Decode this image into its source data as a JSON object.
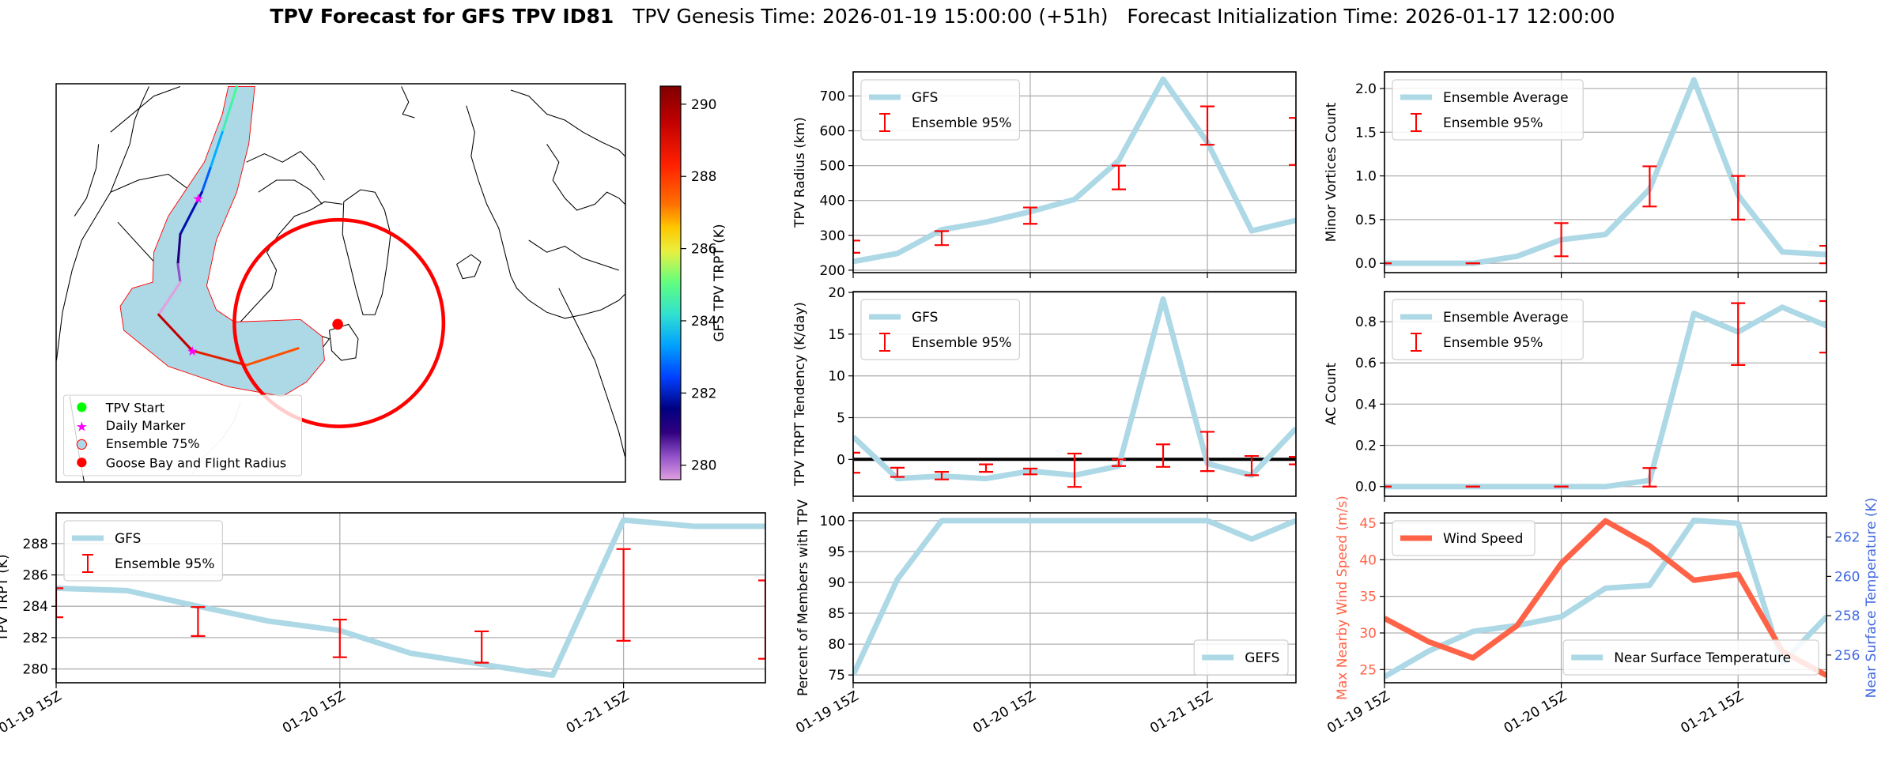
{
  "title": {
    "main": "TPV Forecast for GFS TPV ID81",
    "genesis": "TPV Genesis Time: 2026-01-19 15:00:00 (+51h)",
    "init": "Forecast Initialization Time: 2026-01-17 12:00:00"
  },
  "map": {
    "legend": [
      "TPV Start",
      "Daily Marker",
      "Ensemble 75%",
      "Goose Bay and Flight Radius"
    ],
    "colorbar": {
      "label": "GFS TPV TRPT (K)",
      "ticks": [
        "280",
        "282",
        "284",
        "286",
        "288",
        "290"
      ],
      "tick_values": [
        280,
        282,
        284,
        286,
        288,
        290
      ],
      "range": [
        279.6,
        290.5
      ]
    },
    "colors": {
      "ensemble_fill": "#add8e6",
      "ensemble_edge": "#ff0000",
      "start": "#00ff00",
      "daily": "#ff00ff",
      "goose_bay": "#ff0000"
    }
  },
  "chart_data": [
    {
      "type": "line",
      "id": "trpt",
      "ylabel": "TPV TRPT (K)",
      "ylim": [
        279.12,
        289.96
      ],
      "yticks": [
        280,
        282,
        284,
        286,
        288
      ],
      "ytick_labels": [
        "280",
        "282",
        "284",
        "286",
        "288"
      ],
      "xticks": {
        "index": [
          0,
          4,
          8
        ],
        "labels": [
          "01-19 15Z",
          "01-20 15Z",
          "01-21 15Z"
        ]
      },
      "show_xlabels": true,
      "series": [
        {
          "name": "GFS",
          "color": "#add8e6",
          "values": [
            285.15,
            285.0,
            284.0,
            283.05,
            282.45,
            281.0,
            280.3,
            279.6,
            289.5,
            289.1,
            289.1
          ]
        }
      ],
      "errorbars": {
        "name": "Ensemble 95%",
        "color": "#ff0000",
        "index": [
          0,
          2,
          4,
          6,
          8,
          10
        ],
        "low": [
          283.3,
          282.1,
          280.75,
          280.4,
          281.8,
          280.65
        ],
        "high": [
          285.15,
          283.95,
          283.15,
          282.4,
          287.65,
          285.65
        ]
      },
      "legend": {
        "loc": "upper-left",
        "entries": [
          "GFS",
          "Ensemble 95%"
        ]
      }
    },
    {
      "type": "line",
      "id": "radius",
      "ylabel": "TPV Radius (km)",
      "ylim": [
        193,
        769
      ],
      "yticks": [
        200,
        300,
        400,
        500,
        600,
        700
      ],
      "ytick_labels": [
        "200",
        "300",
        "400",
        "500",
        "600",
        "700"
      ],
      "xticks": {
        "index": [
          0,
          4,
          8
        ],
        "labels": [
          "01-19 15Z",
          "01-20 15Z",
          "01-21 15Z"
        ]
      },
      "show_xlabels": false,
      "series": [
        {
          "name": "GFS",
          "color": "#add8e6",
          "values": [
            225,
            248,
            316,
            338,
            368,
            403,
            515,
            748,
            567,
            313,
            343
          ]
        }
      ],
      "errorbars": {
        "name": "Ensemble 95%",
        "color": "#ff0000",
        "index": [
          0,
          2,
          4,
          6,
          8,
          10
        ],
        "low": [
          250,
          272,
          333,
          432,
          560,
          502
        ],
        "high": [
          285,
          312,
          380,
          500,
          670,
          637
        ]
      },
      "legend": {
        "loc": "upper-left",
        "entries": [
          "GFS",
          "Ensemble 95%"
        ]
      }
    },
    {
      "type": "line",
      "id": "tendency",
      "ylabel": "TPV TRPT Tendency (K/day)",
      "ylim": [
        -4.42,
        20.1
      ],
      "yticks": [
        0,
        5,
        10,
        15,
        20
      ],
      "ytick_labels": [
        "0",
        "5",
        "10",
        "15",
        "20"
      ],
      "zero_line": true,
      "xticks": {
        "index": [
          0,
          4,
          8
        ],
        "labels": [
          "01-19 15Z",
          "01-20 15Z",
          "01-21 15Z"
        ]
      },
      "show_xlabels": false,
      "series": [
        {
          "name": "GFS",
          "color": "#add8e6",
          "values": [
            2.7,
            -2.3,
            -2.0,
            -2.3,
            -1.4,
            -1.9,
            -0.8,
            19.2,
            -0.5,
            -1.9,
            3.7
          ]
        }
      ],
      "errorbars": {
        "name": "Ensemble 95%",
        "color": "#ff0000",
        "index": [
          0,
          1,
          2,
          3,
          4,
          5,
          6,
          7,
          8,
          9,
          10
        ],
        "low": [
          -1.6,
          -2.1,
          -2.4,
          -1.5,
          -1.8,
          -3.3,
          -0.8,
          -0.9,
          -1.4,
          -1.9,
          -0.6
        ],
        "high": [
          0.8,
          -1.0,
          -1.5,
          -0.6,
          -1.1,
          0.7,
          0.0,
          1.8,
          3.3,
          0.4,
          0.3
        ]
      },
      "legend": {
        "loc": "upper-left",
        "entries": [
          "GFS",
          "Ensemble 95%"
        ]
      }
    },
    {
      "type": "line",
      "id": "percent",
      "ylabel": "Percent of Members with TPV",
      "ylim": [
        73.74,
        101.26
      ],
      "yticks": [
        75,
        80,
        85,
        90,
        95,
        100
      ],
      "ytick_labels": [
        "75",
        "80",
        "85",
        "90",
        "95",
        "100"
      ],
      "xticks": {
        "index": [
          0,
          4,
          8
        ],
        "labels": [
          "01-19 15Z",
          "01-20 15Z",
          "01-21 15Z"
        ]
      },
      "show_xlabels": true,
      "series": [
        {
          "name": "GEFS",
          "color": "#add8e6",
          "values": [
            75,
            90.5,
            100,
            100,
            100,
            100,
            100,
            100,
            100,
            97,
            100
          ]
        }
      ],
      "legend": {
        "loc": "lower-right",
        "entries": [
          "GEFS"
        ]
      }
    },
    {
      "type": "line",
      "id": "minor",
      "ylabel": "Minor Vortices Count",
      "ylim": [
        -0.107,
        2.19
      ],
      "yticks": [
        0,
        0.5,
        1,
        1.5,
        2
      ],
      "ytick_labels": [
        "0.0",
        "0.5",
        "1.0",
        "1.5",
        "2.0"
      ],
      "xticks": {
        "index": [
          0,
          4,
          8
        ],
        "labels": [
          "01-19 15Z",
          "01-20 15Z",
          "01-21 15Z"
        ]
      },
      "show_xlabels": false,
      "series": [
        {
          "name": "Ensemble Average",
          "color": "#add8e6",
          "values": [
            0,
            0,
            0,
            0.08,
            0.27,
            0.33,
            0.85,
            2.1,
            0.78,
            0.13,
            0.1
          ]
        }
      ],
      "errorbars": {
        "name": "Ensemble 95%",
        "color": "#ff0000",
        "index": [
          0,
          2,
          4,
          6,
          8,
          10
        ],
        "low": [
          0,
          0,
          0.08,
          0.65,
          0.5,
          0
        ],
        "high": [
          0,
          0,
          0.46,
          1.11,
          1.0,
          0.2
        ]
      },
      "legend": {
        "loc": "upper-left",
        "entries": [
          "Ensemble Average",
          "Ensemble 95%"
        ]
      }
    },
    {
      "type": "line",
      "id": "ac",
      "ylabel": "AC Count",
      "ylim": [
        -0.047,
        0.946
      ],
      "yticks": [
        0,
        0.2,
        0.4,
        0.6,
        0.8
      ],
      "ytick_labels": [
        "0.0",
        "0.2",
        "0.4",
        "0.6",
        "0.8"
      ],
      "xticks": {
        "index": [
          0,
          4,
          8
        ],
        "labels": [
          "01-19 15Z",
          "01-20 15Z",
          "01-21 15Z"
        ]
      },
      "show_xlabels": false,
      "series": [
        {
          "name": "Ensemble Average",
          "color": "#add8e6",
          "values": [
            0,
            0,
            0,
            0,
            0,
            0,
            0.03,
            0.84,
            0.75,
            0.87,
            0.78
          ]
        }
      ],
      "errorbars": {
        "name": "Ensemble 95%",
        "color": "#ff0000",
        "index": [
          0,
          2,
          4,
          6,
          8,
          10
        ],
        "low": [
          0,
          0,
          0,
          0,
          0.59,
          0.65
        ],
        "high": [
          0,
          0,
          0,
          0.09,
          0.89,
          0.9
        ]
      },
      "legend": {
        "loc": "upper-left",
        "entries": [
          "Ensemble Average",
          "Ensemble 95%"
        ]
      }
    },
    {
      "type": "line",
      "id": "wind",
      "ylabel": "Max Nearby Wind Speed (m/s)",
      "ylabel_color": "#ff6347",
      "ylim": [
        23.2,
        46.4
      ],
      "yticks": [
        25,
        30,
        35,
        40,
        45
      ],
      "ytick_labels": [
        "25",
        "30",
        "35",
        "40",
        "45"
      ],
      "xticks": {
        "index": [
          0,
          4,
          8
        ],
        "labels": [
          "01-19 15Z",
          "01-20 15Z",
          "01-21 15Z"
        ]
      },
      "show_xlabels": true,
      "series": [
        {
          "name": "Wind Speed",
          "color": "#ff6347",
          "values": [
            32,
            28.8,
            26.6,
            31,
            39.5,
            45.3,
            41.9,
            37.2,
            38,
            27.5,
            24.2
          ]
        }
      ],
      "legend": {
        "loc": "upper-left",
        "entries": [
          "Wind Speed"
        ]
      },
      "twin": {
        "ylabel": "Near Surface Temperature (K)",
        "color": "#4169e1",
        "ylim": [
          254.59,
          263.23
        ],
        "yticks": [
          256,
          258,
          260,
          262
        ],
        "ytick_labels": [
          "256",
          "258",
          "260",
          "262"
        ],
        "series": [
          {
            "name": "Near Surface Temperature",
            "color": "#add8e6",
            "values": [
              254.9,
              256.2,
              257.2,
              257.5,
              257.95,
              259.4,
              259.55,
              262.85,
              262.7,
              255.6,
              257.95
            ]
          }
        ],
        "legend": {
          "loc": "lower-right",
          "entries": [
            "Near Surface Temperature"
          ]
        }
      }
    }
  ]
}
